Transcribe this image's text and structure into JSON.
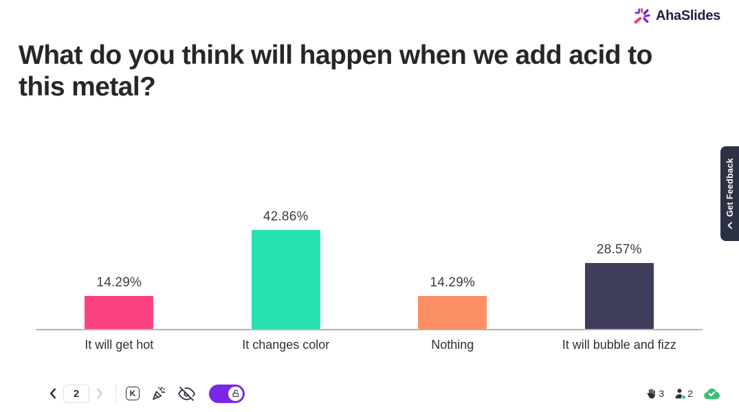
{
  "brand": {
    "name": "AhaSlides"
  },
  "slide": {
    "title": "What do you think will happen when we add acid to this metal?"
  },
  "chart_data": {
    "type": "bar",
    "categories": [
      "It will get hot",
      "It changes color",
      "Nothing",
      "It will bubble and fizz"
    ],
    "values": [
      14.29,
      42.86,
      14.29,
      28.57
    ],
    "value_labels": [
      "14.29%",
      "42.86%",
      "14.29%",
      "28.57%"
    ],
    "bar_colors": [
      "#FB427E",
      "#25E2B2",
      "#FC8F63",
      "#3F3D5C"
    ],
    "title": "",
    "xlabel": "",
    "ylabel": "",
    "ylim": [
      0,
      50
    ],
    "grid": false,
    "legend": false
  },
  "feedback_tab": {
    "label": "Get Feedback"
  },
  "toolbar": {
    "page_number": "2",
    "shortcut_key": "K"
  },
  "status": {
    "hands_count": "3",
    "participants_count": "2"
  },
  "colors": {
    "accent_purple": "#7A27E8",
    "brand_navy": "#1D2145",
    "tab_navy": "#2C3144",
    "success_green": "#3DBE73",
    "axis_grey": "#B3B3B3"
  }
}
